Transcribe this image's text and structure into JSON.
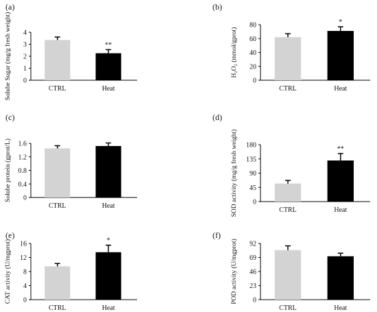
{
  "chart_data": [
    {
      "type": "bar",
      "panel_label": "(a)",
      "categories": [
        "CTRL",
        "Heat"
      ],
      "values": [
        3.35,
        2.25
      ],
      "errors": [
        0.25,
        0.3
      ],
      "significance": [
        "",
        "**"
      ],
      "ylabel": "Solube Sugar (mg/g fresh weight)",
      "ylim": [
        0,
        4
      ],
      "yticks": [
        "0",
        "1",
        "2",
        "3",
        "4"
      ],
      "bar_colors": [
        "#d3d3d3",
        "#000000"
      ]
    },
    {
      "type": "bar",
      "panel_label": "(b)",
      "categories": [
        "CTRL",
        "Heat"
      ],
      "values": [
        62,
        71
      ],
      "errors": [
        5,
        6
      ],
      "significance": [
        "",
        "*"
      ],
      "ylabel": "H₂O₂ (mmol/gprot)",
      "ylim": [
        0,
        80
      ],
      "yticks": [
        "0",
        "20",
        "40",
        "60",
        "80"
      ],
      "bar_colors": [
        "#d3d3d3",
        "#000000"
      ]
    },
    {
      "type": "bar",
      "panel_label": "(c)",
      "categories": [
        "CTRL",
        "Heat"
      ],
      "values": [
        1.45,
        1.52
      ],
      "errors": [
        0.08,
        0.09
      ],
      "significance": [
        "",
        ""
      ],
      "ylabel": "Solube protein (gprot/L)",
      "ylim": [
        0,
        1.6
      ],
      "yticks": [
        "0",
        "0.4",
        "0.8",
        "1.2",
        "1.6"
      ],
      "bar_colors": [
        "#d3d3d3",
        "#000000"
      ]
    },
    {
      "type": "bar",
      "panel_label": "(d)",
      "categories": [
        "CTRL",
        "Heat"
      ],
      "values": [
        57,
        130
      ],
      "errors": [
        10,
        22
      ],
      "significance": [
        "",
        "**"
      ],
      "ylabel": "SOD activity (mg/g fresh weight)",
      "ylim": [
        0,
        180
      ],
      "yticks": [
        "0",
        "45",
        "90",
        "135",
        "180"
      ],
      "bar_colors": [
        "#d3d3d3",
        "#000000"
      ]
    },
    {
      "type": "bar",
      "panel_label": "(e)",
      "categories": [
        "CTRL",
        "Heat"
      ],
      "values": [
        9.5,
        13.5
      ],
      "errors": [
        0.8,
        2.0
      ],
      "significance": [
        "",
        "*"
      ],
      "ylabel": "CAT activity (U/mgprot)",
      "ylim": [
        0,
        16
      ],
      "yticks": [
        "0",
        "4",
        "8",
        "12",
        "16"
      ],
      "bar_colors": [
        "#d3d3d3",
        "#000000"
      ]
    },
    {
      "type": "bar",
      "panel_label": "(f)",
      "categories": [
        "CTRL",
        "Heat"
      ],
      "values": [
        81,
        71
      ],
      "errors": [
        7,
        5
      ],
      "significance": [
        "",
        ""
      ],
      "ylabel": "POD activity (U/mgprot)",
      "ylim": [
        0,
        92
      ],
      "yticks": [
        "0",
        "23",
        "46",
        "69",
        "92"
      ],
      "bar_colors": [
        "#d3d3d3",
        "#000000"
      ]
    }
  ]
}
